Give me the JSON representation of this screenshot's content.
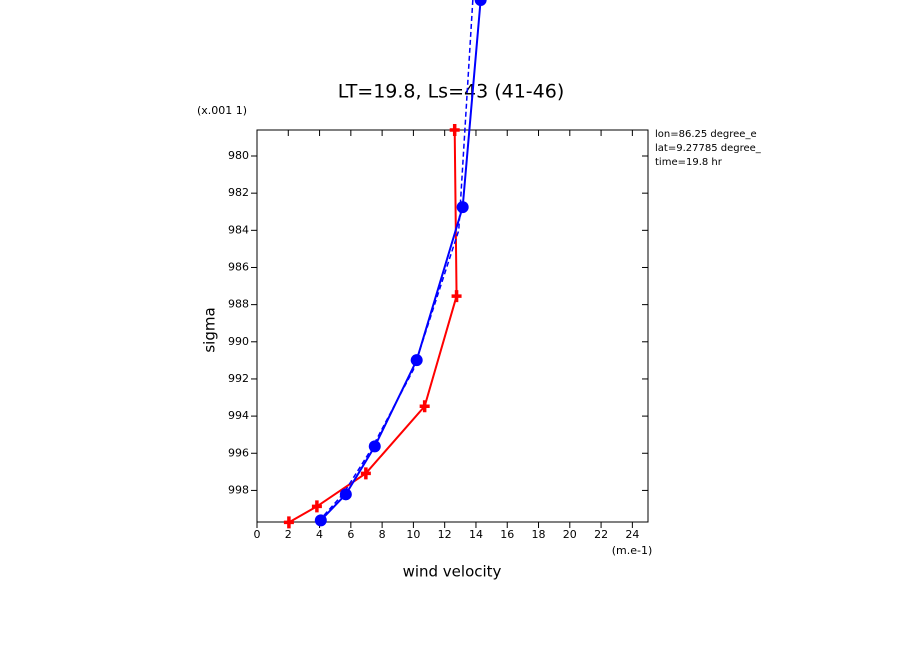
{
  "chart_data": {
    "type": "line",
    "title": "LT=19.8, Ls=43 (41-46)",
    "x_label": "wind velocity",
    "y_label": "sigma",
    "x_units": "(m.e-1)",
    "y_units": "(x.001 1)",
    "annotations": [
      "lon=86.25 degree_e",
      "lat=9.27785 degree_",
      "time=19.8 hr"
    ],
    "xlim": [
      0,
      25
    ],
    "ylim": [
      999.7,
      978.6
    ],
    "xticks": [
      0,
      2,
      4,
      6,
      8,
      10,
      12,
      14,
      16,
      18,
      20,
      22,
      24
    ],
    "yticks": [
      980,
      982,
      984,
      986,
      988,
      990,
      992,
      994,
      996,
      998
    ],
    "series": [
      {
        "color": "#ff0000",
        "marker": "cross",
        "dash": false,
        "x": [
          12.64,
          12.76,
          10.72,
          6.96,
          3.83,
          2.04
        ],
        "values": [
          978.6,
          987.54,
          993.47,
          997.08,
          998.86,
          999.72
        ]
      },
      {
        "color": "#0000ff",
        "marker": "circle",
        "dash": false,
        "x": [
          14.3,
          13.15,
          10.21,
          7.53,
          5.68,
          4.08
        ],
        "values": [
          971.6,
          982.75,
          990.99,
          995.63,
          998.21,
          999.61
        ]
      },
      {
        "color": "#0000ff",
        "marker": "none",
        "dash": true,
        "x": [
          13.8,
          12.9,
          10.0,
          7.3,
          5.5,
          3.9
        ],
        "values": [
          971.6,
          984.0,
          991.5,
          995.8,
          998.2,
          999.7
        ]
      }
    ]
  }
}
